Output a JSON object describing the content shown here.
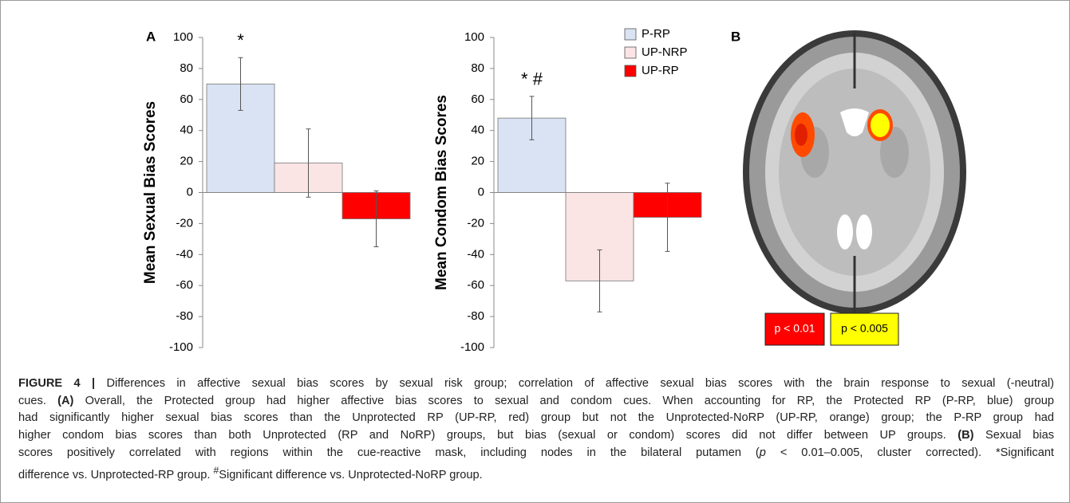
{
  "chart_data": [
    {
      "type": "bar",
      "panel": "A",
      "y_label": "Mean Sexual Bias Scores",
      "values": [
        70,
        19,
        -17
      ],
      "errors": [
        17,
        22,
        18
      ],
      "ylim": [
        -100,
        100
      ],
      "yticks": [
        -100,
        -80,
        -60,
        -40,
        -20,
        0,
        20,
        40,
        60,
        80,
        100
      ],
      "annotation": "*"
    },
    {
      "type": "bar",
      "y_label": "Mean Condom Bias Scores",
      "values": [
        48,
        -57,
        -16
      ],
      "errors": [
        14,
        20,
        22
      ],
      "ylim": [
        -100,
        100
      ],
      "yticks": [
        -100,
        -80,
        -60,
        -40,
        -20,
        0,
        20,
        40,
        60,
        80,
        100
      ],
      "annotation": "* #"
    }
  ],
  "legend": {
    "items": [
      {
        "name": "P-RP",
        "color": "#dae3f3"
      },
      {
        "name": "UP-NRP",
        "color": "#fbe4e4"
      },
      {
        "name": "UP-RP",
        "color": "#ff0000"
      }
    ]
  },
  "brain_panel": {
    "label": "B",
    "keys": [
      {
        "text": "p < 0.01",
        "color": "#ff0000"
      },
      {
        "text": "p < 0.005",
        "color": "#ffff00"
      }
    ]
  },
  "caption": {
    "lines": [
      [
        "FIGURE 4 |",
        " Differences in affective sexual bias scores by sexual risk group; correlation of affective sexual bias scores with the brain response to sexual (-neutral)"
      ],
      [
        "cues. ",
        "(A)",
        " Overall, the Protected group had higher affective bias scores to sexual and condom cues. When accounting for RP, the Protected RP (P-RP, blue) group"
      ],
      [
        "had significantly higher sexual bias scores than the Unprotected RP (UP-RP, red) group but not the Unprotected-NoRP (UP-RP, orange) group; the P-RP group had"
      ],
      [
        "higher condom bias scores than both Unprotected (RP and NoRP) groups, but bias (sexual or condom) scores did not differ between UP groups. ",
        "(B)",
        " Sexual bias"
      ],
      [
        "scores positively correlated with regions within the cue-reactive mask, including nodes in the bilateral putamen (",
        "p",
        " < 0.01–0.005, cluster corrected). *Significant"
      ],
      [
        "difference vs. Unprotected-RP group. ",
        "#",
        "Significant difference vs. Unprotected-NoRP group."
      ]
    ]
  }
}
